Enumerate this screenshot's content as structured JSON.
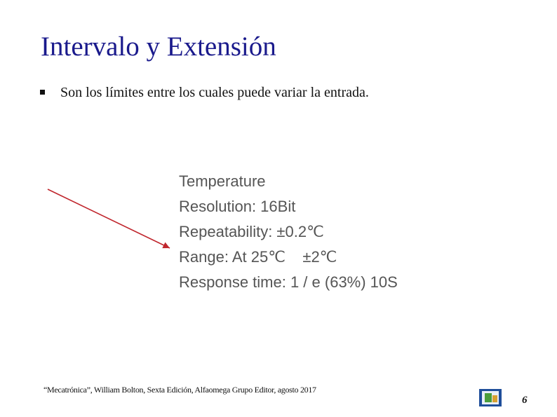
{
  "title": "Intervalo y Extensión",
  "bullets": [
    "Son los límites entre los cuales puede variar la entrada."
  ],
  "specs": [
    "Temperature",
    "Resolution: 16Bit",
    "Repeatability: ±0.2℃",
    "Range: At 25℃    ±2℃",
    "Response time: 1 / e (63%) 10S"
  ],
  "citation": "“Mecatrónica”, William Bolton, Sexta Edición, Alfaomega Grupo Editor, agosto 2017",
  "page_number": "6"
}
